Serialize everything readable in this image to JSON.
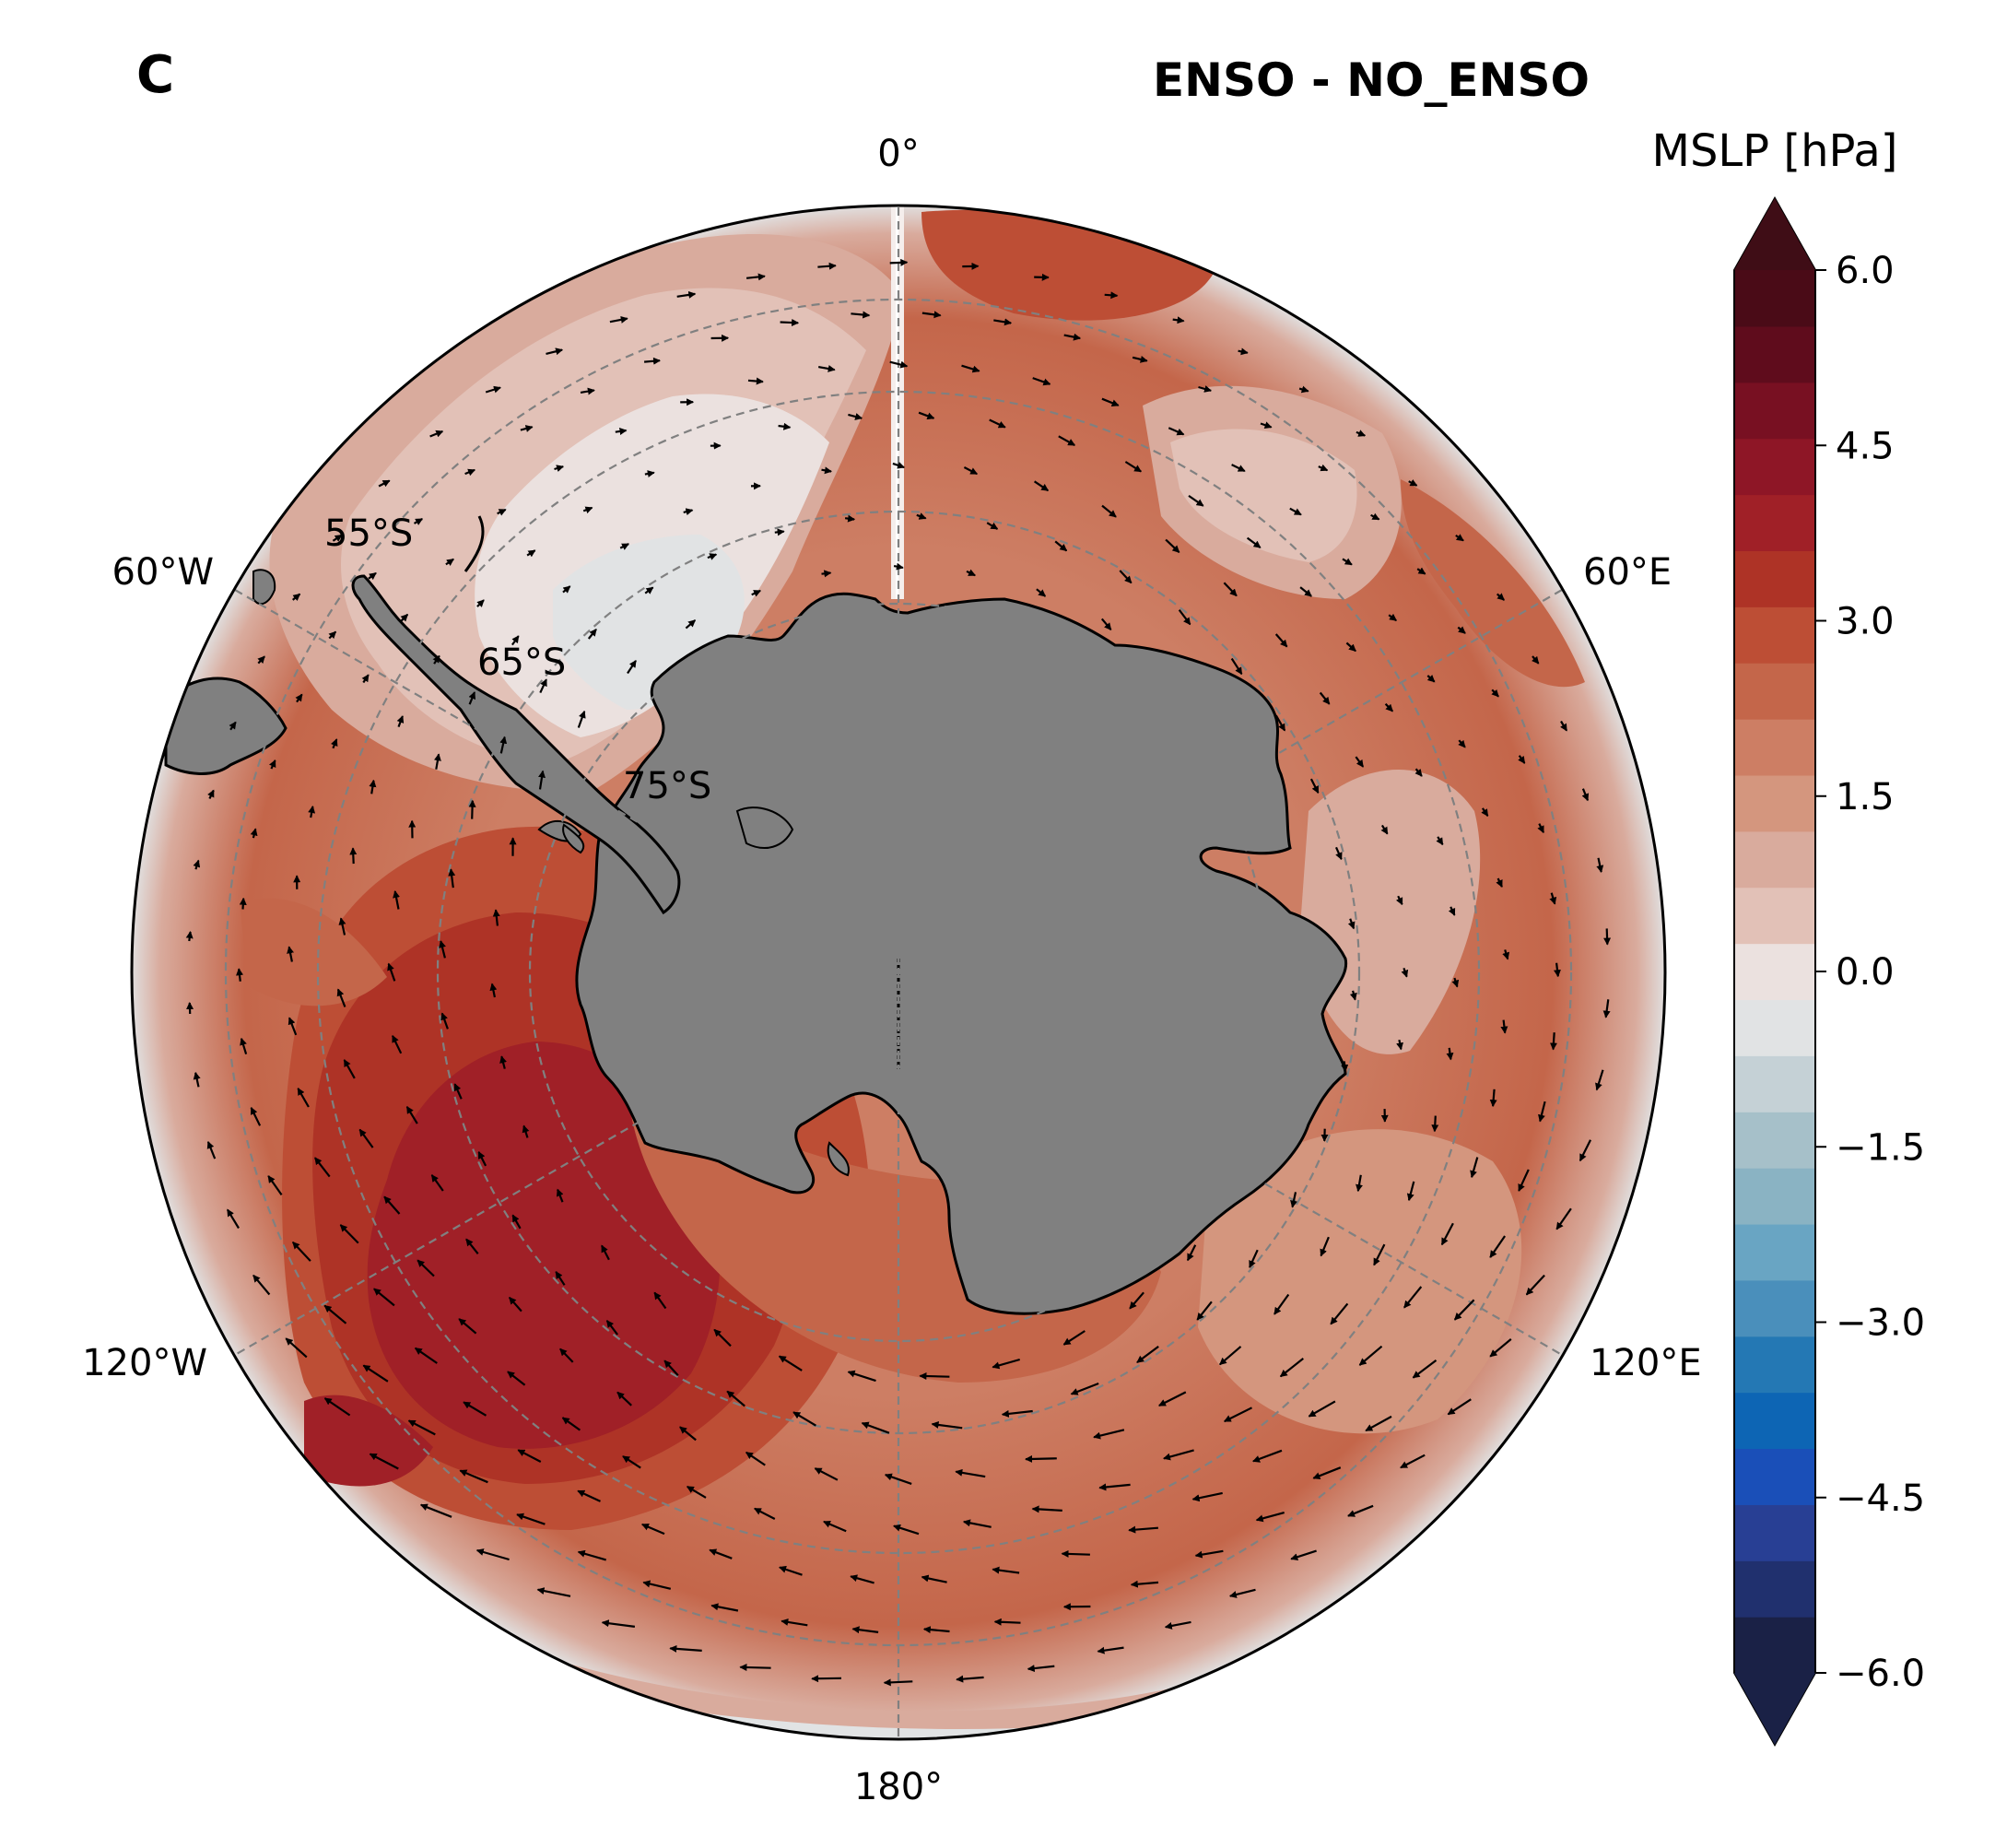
{
  "panel_label": "C",
  "title": "ENSO - NO_ENSO",
  "colorbar": {
    "label": "MSLP [hPa]",
    "ticks": [
      "6.0",
      "4.5",
      "3.0",
      "1.5",
      "0.0",
      "−1.5",
      "−3.0",
      "−4.5",
      "−6.0"
    ],
    "vmin": -6.0,
    "vmax": 6.0,
    "extend": "both",
    "colors": [
      "#1a2146",
      "#20306e",
      "#283f94",
      "#1a4fb8",
      "#0d65b4",
      "#2478b4",
      "#4a8fbb",
      "#69a5c3",
      "#8ab3c3",
      "#a6c0c9",
      "#c5d1d6",
      "#e1e3e4",
      "#ebe1df",
      "#e2c1b7",
      "#d9ab9d",
      "#d4967e",
      "#cd7e64",
      "#c4664a",
      "#bd4e35",
      "#ae3326",
      "#a02027",
      "#8e1626",
      "#781022",
      "#5f0c1c",
      "#4a0b17"
    ],
    "over_color": "#3f0d16",
    "under_color": "#1a2146"
  },
  "map": {
    "projection": "south-polar-stereographic",
    "land_color": "#808080",
    "meridian_labels": [
      "0°",
      "60°E",
      "120°E",
      "180°",
      "120°W",
      "60°W"
    ],
    "parallel_labels": [
      "55°S",
      "65°S",
      "75°S"
    ],
    "arrows": "surface wind anomaly vectors"
  }
}
